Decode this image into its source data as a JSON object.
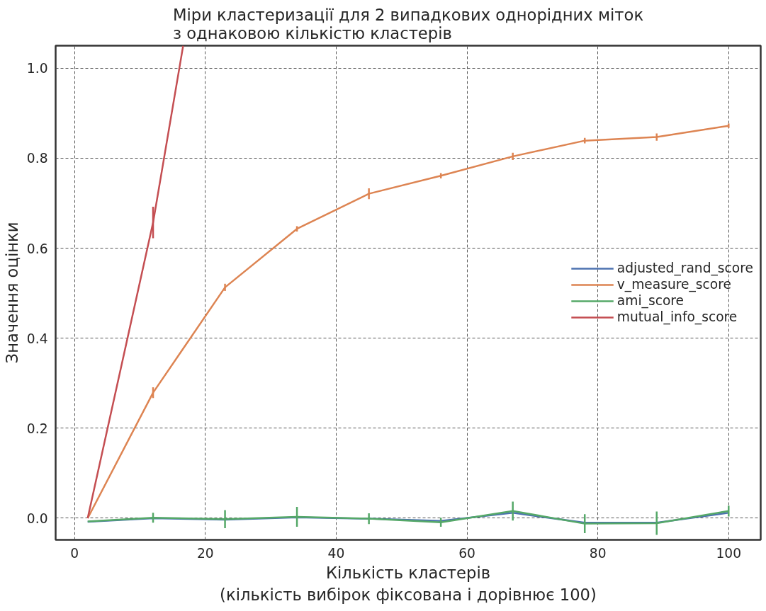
{
  "chart_data": {
    "type": "line",
    "title": "Міри кластеризації для 2 випадкових однорідних міток\nз однаковою кількістю кластерів",
    "xlabel": "Кількість кластерів\n(кількість вибірок фіксована і дорівнює 100)",
    "ylabel": "Значення оцінки",
    "x": [
      2,
      12,
      23,
      34,
      45,
      56,
      67,
      78,
      89,
      100
    ],
    "series": [
      {
        "name": "adjusted_rand_score",
        "color": "#4c72b0",
        "values": [
          -0.008,
          0.0,
          -0.003,
          0.002,
          -0.001,
          -0.006,
          0.012,
          -0.01,
          -0.01,
          0.012
        ]
      },
      {
        "name": "v_measure_score",
        "color": "#dd8452",
        "values": [
          0.0,
          0.279,
          0.513,
          0.643,
          0.721,
          0.761,
          0.804,
          0.839,
          0.847,
          0.872
        ],
        "errors": [
          null,
          0.012,
          0.008,
          0.006,
          0.012,
          0.006,
          0.008,
          0.006,
          0.008,
          0.005
        ]
      },
      {
        "name": "ami_score",
        "color": "#55a868",
        "values": [
          -0.007,
          0.001,
          -0.002,
          0.003,
          -0.001,
          -0.009,
          0.016,
          -0.012,
          -0.011,
          0.016
        ],
        "errors": [
          null,
          0.011,
          0.02,
          0.022,
          0.012,
          0.01,
          0.021,
          0.021,
          0.026,
          0.012
        ]
      },
      {
        "name": "mutual_info_score",
        "color": "#c44e52",
        "x": [
          2,
          12,
          16.6
        ],
        "values": [
          0.0,
          0.657,
          1.05
        ],
        "errors": [
          null,
          0.035,
          null
        ]
      }
    ],
    "xlim": [
      -2.9,
      104.9
    ],
    "ylim": [
      -0.048,
      1.05
    ],
    "xticks": [
      0,
      20,
      40,
      60,
      80,
      100
    ],
    "yticks": [
      {
        "value": 0,
        "label": "0.0"
      },
      {
        "value": 0.2,
        "label": "0.2"
      },
      {
        "value": 0.4,
        "label": "0.4"
      },
      {
        "value": 0.6,
        "label": "0.6"
      },
      {
        "value": 0.8,
        "label": "0.8"
      },
      {
        "value": 1.0,
        "label": "1.0"
      }
    ],
    "grid": true,
    "legend": "right",
    "line_style": "solid",
    "marker": "none"
  }
}
